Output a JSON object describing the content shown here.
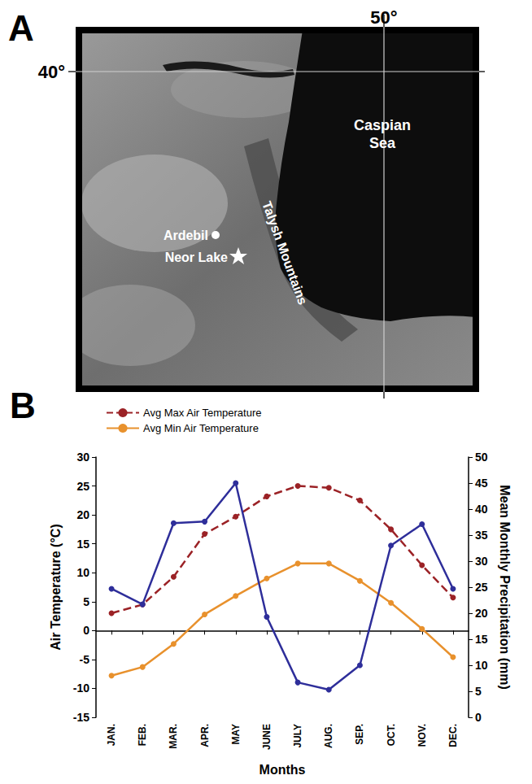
{
  "panel_labels": [
    "A",
    "B"
  ],
  "map": {
    "longitude_label": "50°",
    "latitude_label": "40°",
    "sea": "Caspian Sea",
    "city": "Ardebil",
    "site": "Neor Lake",
    "mountains": "Talysh Mountains"
  },
  "chart_data": {
    "type": "line",
    "categories": [
      "JAN.",
      "FEB.",
      "MAR.",
      "APR.",
      "MAY",
      "JUNE",
      "JULY",
      "AUG.",
      "SEP.",
      "OCT.",
      "NOV.",
      "DEC."
    ],
    "x_label": "Months",
    "y_label": "Air Temperature (°C)",
    "y2_label": "Mean Monthly Precipitation (mm)",
    "ylim": [
      -15,
      30
    ],
    "yticks": [
      -15,
      -10,
      -5,
      0,
      5,
      10,
      15,
      20,
      25,
      30
    ],
    "y2lim": [
      0,
      50
    ],
    "y2ticks": [
      0,
      5,
      10,
      15,
      20,
      25,
      30,
      35,
      40,
      45,
      50
    ],
    "grid": false,
    "legend": "top",
    "series": [
      {
        "name": "Avg Max Air Temperature",
        "color": "#9b2226",
        "marker": "circle",
        "line_style": "dashed",
        "values": [
          3,
          4.5,
          9.3,
          16.7,
          19.7,
          23.2,
          25,
          24.7,
          22.5,
          17.5,
          11.3,
          5.7
        ]
      },
      {
        "name": "Avg Min Air Temperature",
        "color": "#e8912d",
        "marker": "circle",
        "line_style": "solid",
        "values": [
          -7.8,
          -6.3,
          -2.3,
          2.8,
          6,
          9,
          11.6,
          11.6,
          8.6,
          4.8,
          0.3,
          -4.6
        ]
      },
      {
        "color": "#2e2e9a",
        "marker": "circle",
        "line_style": "solid",
        "axis": "y2",
        "values": [
          24.7,
          21.7,
          37.3,
          37.6,
          45,
          19.3,
          6.7,
          5.3,
          10,
          33,
          37.1,
          24.7
        ]
      }
    ]
  }
}
